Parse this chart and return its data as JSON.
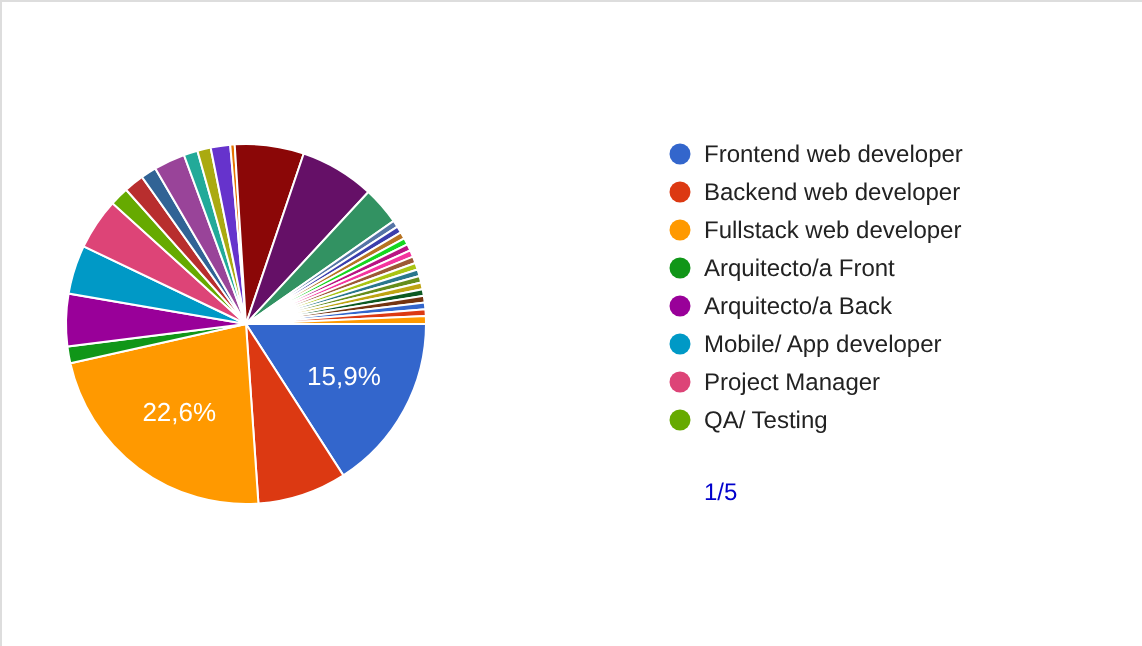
{
  "chart_data": {
    "type": "pie",
    "categories": [
      "Frontend web developer",
      "Backend web developer",
      "Fullstack web developer",
      "Arquitecto/a Front",
      "Arquitecto/a Back",
      "Mobile/ App developer",
      "Project Manager",
      "QA/ Testing",
      null,
      null,
      null,
      null,
      null,
      null,
      null,
      null,
      null,
      null,
      null,
      null,
      null,
      null,
      null,
      null,
      null,
      null,
      null,
      null,
      null,
      null,
      null,
      null,
      null,
      null
    ],
    "values": [
      15.9,
      8.0,
      22.6,
      1.5,
      4.7,
      4.4,
      4.6,
      1.7,
      1.8,
      1.4,
      2.8,
      1.25,
      1.2,
      1.75,
      0.4,
      6.2,
      6.7,
      3.4,
      0.6,
      0.6,
      0.6,
      0.6,
      0.6,
      0.6,
      0.6,
      0.6,
      0.6,
      0.6,
      0.6,
      0.6,
      0.6,
      0.6,
      0.6,
      0.7
    ],
    "colors": [
      "#3366cc",
      "#dc3912",
      "#ff9900",
      "#109618",
      "#990099",
      "#0099c6",
      "#dd4477",
      "#66aa00",
      "#b82e2e",
      "#316395",
      "#994499",
      "#22aa99",
      "#aaaa11",
      "#6633cc",
      "#e67300",
      "#8b0707",
      "#651067",
      "#329262",
      "#5574a6",
      "#3b3eac",
      "#b77322",
      "#16d620",
      "#b91383",
      "#f4359e",
      "#9c5935",
      "#a9c413",
      "#2a778d",
      "#668d1c",
      "#bea413",
      "#0c5922",
      "#743411",
      "#3366cc",
      "#dc3912",
      "#ff9900"
    ],
    "value_labels": [
      "15,9%",
      null,
      "22,6%",
      null,
      null,
      null,
      null,
      null,
      null,
      null,
      null,
      null,
      null,
      null,
      null,
      null,
      null,
      null,
      null,
      null,
      null,
      null,
      null,
      null,
      null,
      null,
      null,
      null,
      null,
      null,
      null,
      null,
      null,
      null
    ],
    "legend": "right",
    "annotations": [
      "1/5"
    ]
  }
}
